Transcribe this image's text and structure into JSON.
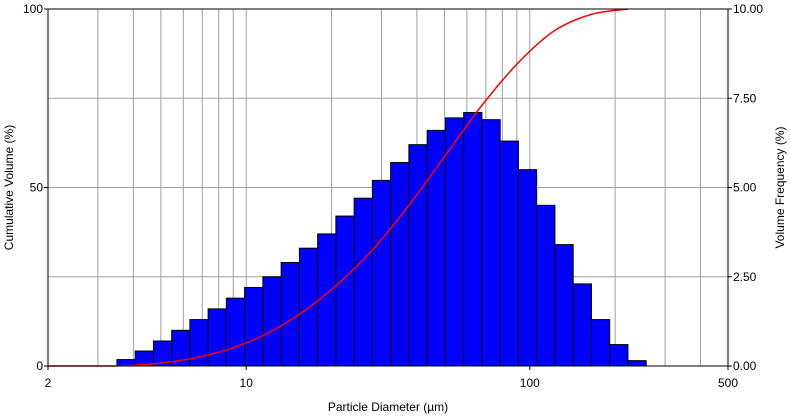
{
  "chart_data": {
    "type": "bar",
    "title": "",
    "xlabel": "Particle Diameter (µm)",
    "ylabel_left": "Cumulative Volume (%)",
    "ylabel_right": "Volume Frequency (%)",
    "x_scale": "log",
    "xlim": [
      2,
      500
    ],
    "x_tick_labels": [
      "2",
      "10",
      "100",
      "500"
    ],
    "x_tick_values": [
      2,
      10,
      100,
      500
    ],
    "y_left_lim": [
      0,
      100
    ],
    "y_left_tick_labels": [
      "0",
      "50",
      "100"
    ],
    "y_left_tick_values": [
      0,
      50,
      100
    ],
    "y_right_lim": [
      0,
      10
    ],
    "y_right_tick_labels": [
      "0.00",
      "2.50",
      "5.00",
      "7.50",
      "10.00"
    ],
    "y_right_tick_values": [
      0,
      2.5,
      5,
      7.5,
      10
    ],
    "grid": true,
    "colors": {
      "bars": "#0000ff",
      "bar_edge": "#000000",
      "curve": "#ff0000",
      "grid": "#a0a0a0"
    },
    "series": [
      {
        "kind": "bar",
        "axis": "right",
        "bin_edges": [
          3.5,
          4.06,
          4.71,
          5.46,
          6.33,
          7.34,
          8.51,
          9.87,
          11.45,
          13.28,
          15.4,
          17.86,
          20.71,
          24.02,
          27.86,
          32.31,
          37.47,
          43.46,
          50.4,
          58.45,
          67.79,
          78.62,
          91.18,
          105.75,
          122.64,
          142.23,
          164.95,
          191.3,
          221.86,
          257.3,
          298.4
        ],
        "values": [
          0.18,
          0.42,
          0.7,
          1.0,
          1.3,
          1.6,
          1.9,
          2.2,
          2.5,
          2.9,
          3.3,
          3.7,
          4.2,
          4.7,
          5.2,
          5.7,
          6.2,
          6.6,
          6.95,
          7.1,
          6.9,
          6.3,
          5.5,
          4.5,
          3.4,
          2.3,
          1.3,
          0.6,
          0.15,
          0.0
        ]
      },
      {
        "kind": "line",
        "axis": "left",
        "x": [
          3.5,
          4.71,
          6.33,
          8.51,
          11.45,
          15.4,
          20.71,
          27.86,
          37.47,
          50.4,
          67.79,
          91.18,
          122.64,
          164.95,
          221.86
        ],
        "y": [
          0.0,
          0.6,
          2.0,
          4.5,
          8.5,
          14.5,
          22.5,
          32.5,
          45.0,
          59.0,
          73.0,
          85.0,
          94.0,
          98.5,
          100.0
        ]
      }
    ]
  }
}
